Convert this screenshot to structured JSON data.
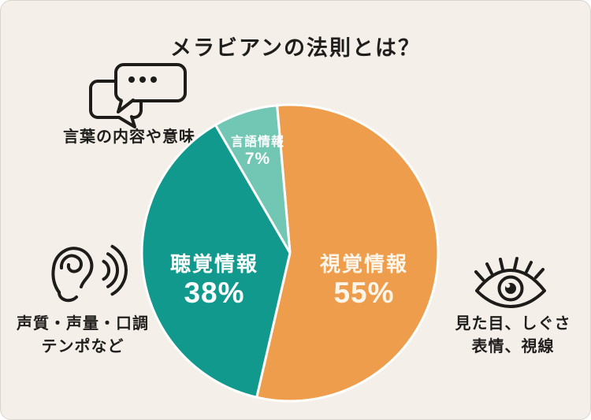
{
  "page": {
    "background_color": "#f4efe9",
    "title": "メラビアンの法則とは？"
  },
  "chart_data": {
    "type": "pie",
    "title": "メラビアンの法則とは？",
    "start_angle_deg": -5,
    "slice_gap_color": "#ffffff",
    "legend_position": "none",
    "segments": [
      {
        "label": "視覚情報",
        "value": 55,
        "pct_text": "55%",
        "color": "#ee9d4d",
        "text_color": "#fcf6ea"
      },
      {
        "label": "聴覚情報",
        "value": 38,
        "pct_text": "38%",
        "color": "#12998d",
        "text_color": "#ffffff"
      },
      {
        "label": "言語情報",
        "value": 7,
        "pct_text": "7%",
        "color": "#71c6b4",
        "text_color": "#ffffff"
      }
    ]
  },
  "annotations": {
    "verbal": {
      "icon": "speech-bubbles-icon",
      "label": "言葉の内容や意味"
    },
    "vocal": {
      "icon": "ear-listening-icon",
      "label_line1": "声質・声量・口調",
      "label_line2": "テンポなど"
    },
    "visual": {
      "icon": "eye-icon",
      "label_line1": "見た目、しぐさ",
      "label_line2": "表情、視線"
    }
  }
}
